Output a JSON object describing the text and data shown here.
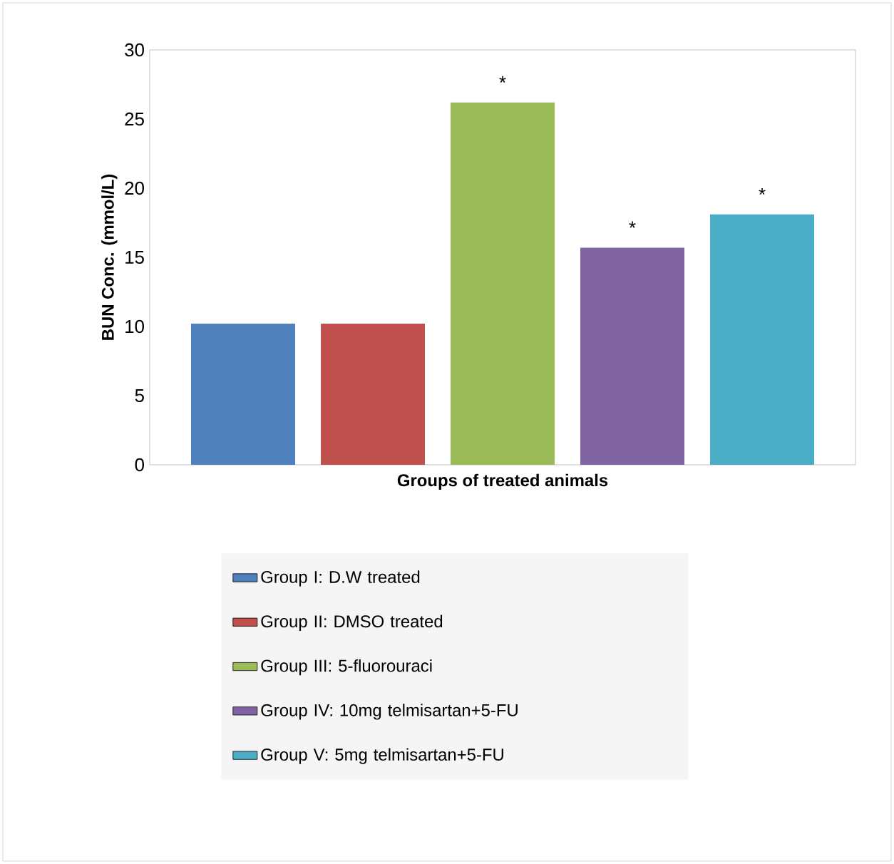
{
  "chart_data": {
    "type": "bar",
    "xlabel": "Groups of treated animals",
    "ylabel": "BUN Conc. (mmol/L)",
    "categories": [
      null
    ],
    "series": [
      {
        "name": "Group I: D.W treated",
        "color": "#4f81bd",
        "values": [
          10.2
        ]
      },
      {
        "name": "Group II:  DMSO treated",
        "color": "#c0504d",
        "values": [
          10.2
        ]
      },
      {
        "name": "Group III: 5-fluorouraci",
        "color": "#9bbb59",
        "values": [
          26.2
        ],
        "value_labels": [
          "*"
        ]
      },
      {
        "name": "Group IV: 10mg telmisartan+5-FU",
        "color": "#8064a2",
        "values": [
          15.7
        ],
        "value_labels": [
          "*"
        ]
      },
      {
        "name": "Group V: 5mg telmisartan+5-FU",
        "color": "#4bacc6",
        "values": [
          18.1
        ],
        "value_labels": [
          "*"
        ]
      }
    ],
    "ylim": [
      0,
      30
    ],
    "yticks": [
      0,
      5,
      10,
      15,
      20,
      25,
      30
    ],
    "grid": false,
    "legend": "bottom"
  }
}
